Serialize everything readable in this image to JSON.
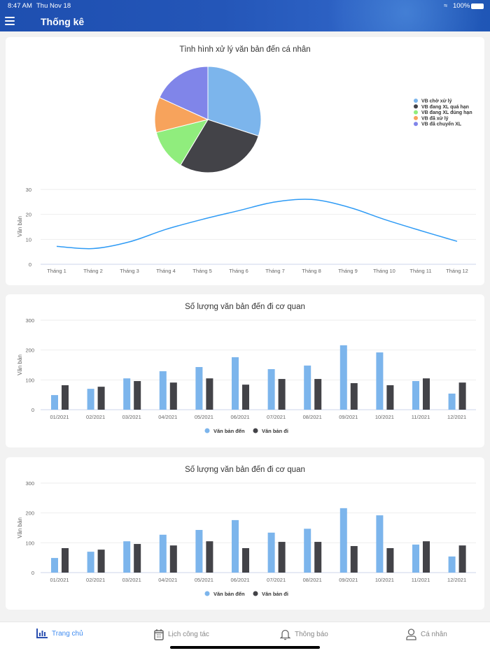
{
  "status_bar": {
    "time": "8:47 AM",
    "date": "Thu Nov 18",
    "battery": "100%"
  },
  "header": {
    "title": "Thống kê",
    "menu_icon": "hamburger-icon"
  },
  "colors": {
    "blue": "#7cb5ec",
    "dark": "#434348",
    "green": "#90ed7d",
    "orange": "#f7a35c",
    "purple": "#8085e9",
    "line": "#2f9bf5",
    "active": "#3f8bf0"
  },
  "chart_data": [
    {
      "type": "pie",
      "title": "Tình hình xử lý văn bản đến cá nhân",
      "legend_position": "right",
      "labels": [
        "VB chờ xử lý",
        "VB đang XL quá hạn",
        "VB đang XL đúng hạn",
        "VB đã xử lý",
        "VB đã chuyển XL"
      ],
      "values": [
        30,
        28.6,
        12.5,
        10.7,
        18.2
      ],
      "colors": [
        "#7cb5ec",
        "#434348",
        "#90ed7d",
        "#f7a35c",
        "#8085e9"
      ]
    },
    {
      "type": "line",
      "title": "",
      "ylabel": "Văn bản",
      "ylim": [
        0,
        30
      ],
      "yticks": [
        0,
        10,
        20,
        30
      ],
      "grid": true,
      "categories": [
        "Tháng 1",
        "Tháng 2",
        "Tháng 3",
        "Tháng 4",
        "Tháng 5",
        "Tháng 6",
        "Tháng 7",
        "Tháng 8",
        "Tháng 9",
        "Tháng 10",
        "Tháng 11",
        "Tháng 12"
      ],
      "values": [
        7.2,
        6.3,
        9,
        14,
        18,
        21.5,
        25,
        26,
        23,
        18,
        13.5,
        9.2
      ]
    },
    {
      "type": "bar",
      "title": "Số lượng văn bản đến đi cơ quan",
      "ylabel": "Văn bản",
      "ylim": [
        0,
        300
      ],
      "yticks": [
        0,
        100,
        200,
        300
      ],
      "grid": true,
      "legend_position": "bottom",
      "categories": [
        "01/2021",
        "02/2021",
        "03/2021",
        "04/2021",
        "05/2021",
        "06/2021",
        "07/2021",
        "08/2021",
        "09/2021",
        "10/2021",
        "11/2021",
        "12/2021"
      ],
      "series": [
        {
          "name": "Văn bản đến",
          "color": "#7cb5ec",
          "values": [
            49,
            70,
            105,
            129,
            143,
            176,
            136,
            148,
            216,
            192,
            96,
            54
          ]
        },
        {
          "name": "Văn bản đi",
          "color": "#434348",
          "values": [
            82,
            77,
            96,
            91,
            105,
            84,
            103,
            103,
            89,
            82,
            105,
            91
          ]
        }
      ]
    },
    {
      "type": "bar",
      "title": "Số lượng văn bản đến đi cơ quan",
      "ylabel": "Văn bản",
      "ylim": [
        0,
        300
      ],
      "yticks": [
        0,
        100,
        200,
        300
      ],
      "grid": true,
      "legend_position": "bottom",
      "categories": [
        "01/2021",
        "02/2021",
        "03/2021",
        "04/2021",
        "05/2021",
        "06/2021",
        "07/2021",
        "08/2021",
        "09/2021",
        "10/2021",
        "11/2021",
        "12/2021"
      ],
      "series": [
        {
          "name": "Văn bản đến",
          "color": "#7cb5ec",
          "values": [
            49,
            70,
            105,
            127,
            143,
            176,
            134,
            147,
            216,
            192,
            94,
            54
          ]
        },
        {
          "name": "Văn bản đi",
          "color": "#434348",
          "values": [
            82,
            77,
            96,
            91,
            105,
            82,
            103,
            103,
            89,
            82,
            105,
            91
          ]
        }
      ]
    }
  ],
  "bottom_nav": [
    {
      "label": "Trang chủ",
      "icon": "bar-chart-icon",
      "active": true
    },
    {
      "label": "Lịch công tác",
      "icon": "calendar-icon",
      "active": false
    },
    {
      "label": "Thông báo",
      "icon": "bell-icon",
      "active": false
    },
    {
      "label": "Cá nhân",
      "icon": "user-icon",
      "active": false
    }
  ]
}
